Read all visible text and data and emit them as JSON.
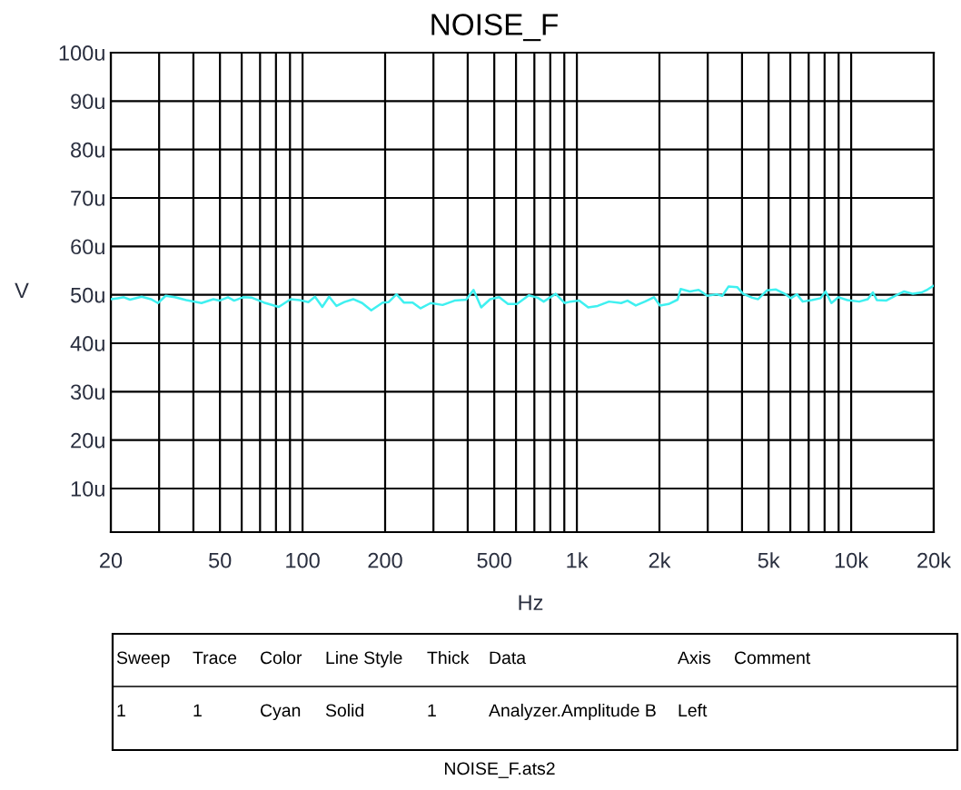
{
  "chart_data": {
    "type": "line",
    "title": "NOISE_F",
    "xlabel": "Hz",
    "ylabel": "V",
    "log": "x",
    "grid": true,
    "xlim": [
      20,
      20000
    ],
    "ylim": [
      1,
      100
    ],
    "xticks": [
      20,
      {
        "value": 30,
        "label": null
      },
      {
        "value": 40,
        "label": null
      },
      50,
      {
        "value": 60,
        "label": null
      },
      {
        "value": 70,
        "label": null
      },
      {
        "value": 80,
        "label": null
      },
      {
        "value": 90,
        "label": null
      },
      100,
      200,
      {
        "value": 300,
        "label": null
      },
      {
        "value": 400,
        "label": null
      },
      500,
      {
        "value": 600,
        "label": null
      },
      {
        "value": 700,
        "label": null
      },
      {
        "value": 800,
        "label": null
      },
      {
        "value": 900,
        "label": null
      },
      {
        "value": 1000,
        "label": "1k"
      },
      {
        "value": 2000,
        "label": "2k"
      },
      {
        "value": 3000,
        "label": null
      },
      {
        "value": 4000,
        "label": null
      },
      {
        "value": 5000,
        "label": "5k"
      },
      {
        "value": 6000,
        "label": null
      },
      {
        "value": 7000,
        "label": null
      },
      {
        "value": 8000,
        "label": null
      },
      {
        "value": 9000,
        "label": null
      },
      {
        "value": 10000,
        "label": "10k"
      },
      {
        "value": 20000,
        "label": "20k"
      }
    ],
    "yticks": [
      {
        "value": 10,
        "label": "10u"
      },
      {
        "value": 20,
        "label": "20u"
      },
      {
        "value": 30,
        "label": "30u"
      },
      {
        "value": 40,
        "label": "40u"
      },
      {
        "value": 50,
        "label": "50u"
      },
      {
        "value": 60,
        "label": "60u"
      },
      {
        "value": 70,
        "label": "70u"
      },
      {
        "value": 80,
        "label": "80u"
      },
      {
        "value": 90,
        "label": "90u"
      },
      {
        "value": 100,
        "label": "100u"
      }
    ],
    "x": [
      20,
      21.2,
      22.3,
      23.5,
      25.9,
      28,
      29.7,
      31.7,
      34.2,
      37.7,
      42.8,
      47.3,
      49.7,
      53.5,
      56.3,
      60.7,
      65.4,
      72.3,
      81.9,
      90.5,
      97.6,
      105,
      111,
      118,
      125,
      133,
      142,
      153,
      165,
      178,
      196,
      206,
      220,
      234,
      252,
      269,
      293,
      324,
      358,
      395,
      420,
      448,
      483,
      521,
      561,
      605,
      668,
      720,
      757,
      837,
      902,
      948,
      1020,
      1100,
      1190,
      1310,
      1450,
      1530,
      1640,
      1770,
      1910,
      2010,
      2160,
      2330,
      2390,
      2580,
      2780,
      2990,
      3230,
      3390,
      3570,
      3840,
      4040,
      4360,
      4580,
      4930,
      5320,
      5730,
      6030,
      6340,
      6660,
      7180,
      7740,
      8060,
      8470,
      8990,
      9690,
      10700,
      11500,
      12000,
      12400,
      13400,
      14500,
      15600,
      16800,
      18100,
      19000,
      20000
    ],
    "series": [
      {
        "color": "#3ff0f0",
        "line_style": "solid",
        "values": [
          49.1,
          49.3,
          49.5,
          49.0,
          49.6,
          49.1,
          48.3,
          49.8,
          49.5,
          48.9,
          48.3,
          49.1,
          48.8,
          49.5,
          48.8,
          49.5,
          49.4,
          48.4,
          47.5,
          49.1,
          48.9,
          48.5,
          49.6,
          47.5,
          49.6,
          47.7,
          48.5,
          49.1,
          48.3,
          46.8,
          48.4,
          48.5,
          50.1,
          48.4,
          48.4,
          47.2,
          48.3,
          47.9,
          48.8,
          49.0,
          51.0,
          47.4,
          49.1,
          49.5,
          48.1,
          48.1,
          49.9,
          49.4,
          48.6,
          50.2,
          48.3,
          48.6,
          48.8,
          47.4,
          47.7,
          48.6,
          48.3,
          48.8,
          47.8,
          48.6,
          49.5,
          47.8,
          48.1,
          49.0,
          51.2,
          50.7,
          51.0,
          49.8,
          50.1,
          49.8,
          51.7,
          51.6,
          50.2,
          49.4,
          49.1,
          50.9,
          51.1,
          50.2,
          49.3,
          50.1,
          48.6,
          48.9,
          49.3,
          50.7,
          48.3,
          49.5,
          48.9,
          48.6,
          49.1,
          50.5,
          48.9,
          48.8,
          49.8,
          50.7,
          50.2,
          50.5,
          51.1,
          51.9
        ]
      }
    ],
    "annotations": [
      "Sweep",
      "Trace",
      "Color",
      "Line Style",
      "Thick",
      "Data",
      "Axis",
      "Comment",
      "1",
      "1",
      "Cyan",
      "Solid",
      "1",
      "Analyzer.Amplitude B",
      "Left",
      "NOISE_F.ats2"
    ]
  }
}
